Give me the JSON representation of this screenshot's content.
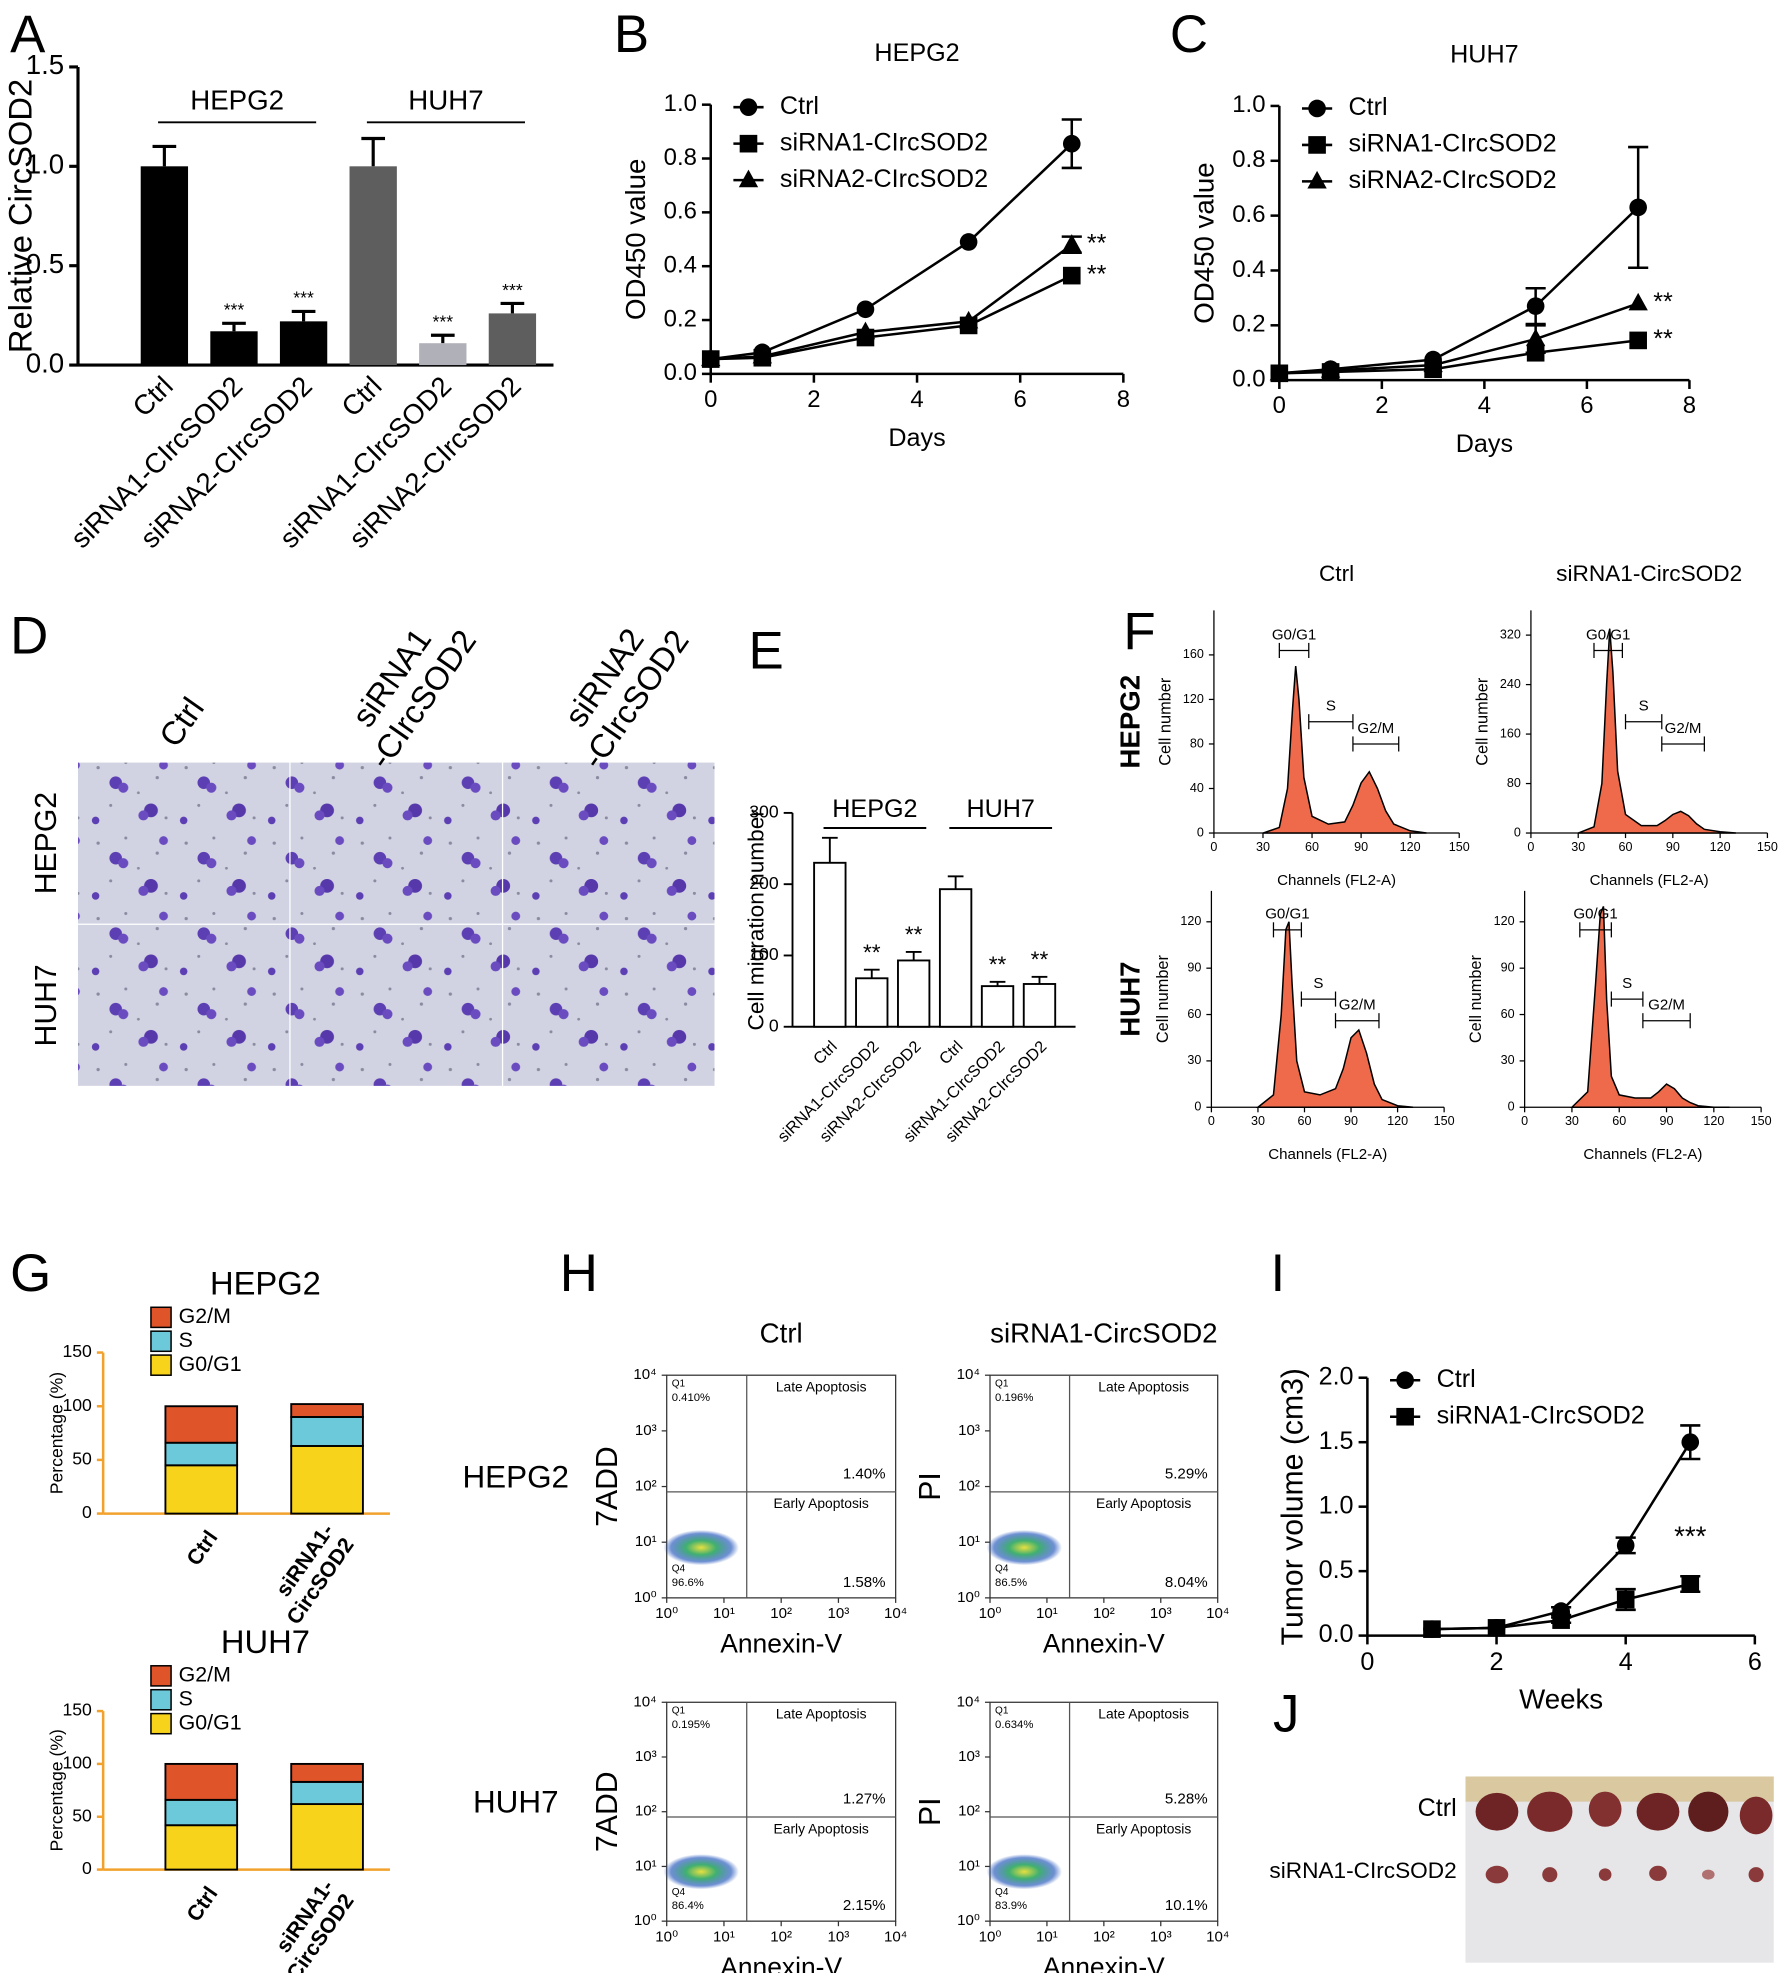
{
  "chart_data": [
    {
      "type": "bar",
      "panel": "A",
      "ylabel": "Relative CircSOD2",
      "categories": [
        "Ctrl",
        "siRNA1-CIrcSOD2",
        "siRNA2-CIrcSOD2",
        "Ctrl",
        "siRNA1-CIrcSOD2",
        "siRNA2-CIrcSOD2"
      ],
      "values": [
        1.0,
        0.17,
        0.22,
        1.0,
        0.11,
        0.26
      ],
      "errors": [
        0.1,
        0.04,
        0.05,
        0.14,
        0.04,
        0.05
      ],
      "colors": [
        "#000000",
        "#000000",
        "#000000",
        "#5e5e5e",
        "#b0b0b8",
        "#5e5e5e"
      ],
      "significance": [
        null,
        "***",
        "***",
        null,
        "***",
        "***"
      ],
      "groups": [
        "HEPG2",
        "HUH7"
      ],
      "ylim": [
        0,
        1.5
      ],
      "yticks": [
        {
          "value": 0,
          "label": "0.0"
        },
        0.5,
        {
          "value": 1,
          "label": "1.0"
        },
        1.5
      ]
    },
    {
      "type": "line",
      "panel": "B",
      "title": "HEPG2",
      "xlabel": "Days",
      "ylabel": "OD450 value",
      "legend": "upper left",
      "x": [
        0,
        1,
        3,
        5,
        7
      ],
      "series": [
        {
          "name": "Ctrl",
          "marker": "circle",
          "values": [
            0.055,
            0.08,
            0.24,
            0.49,
            0.855
          ],
          "errors": [
            0,
            0,
            0,
            0,
            0.09
          ]
        },
        {
          "name": "siRNA1-CIrcSOD2",
          "marker": "square",
          "values": [
            0.055,
            0.06,
            0.135,
            0.18,
            0.365
          ],
          "errors": [
            0,
            0,
            0,
            0,
            0
          ],
          "significance": "**"
        },
        {
          "name": "siRNA2-CIrcSOD2",
          "marker": "triangle",
          "values": [
            0.055,
            0.065,
            0.155,
            0.195,
            0.48
          ],
          "errors": [
            0,
            0,
            0,
            0,
            0.03
          ],
          "significance": "**"
        }
      ],
      "xlim": [
        0,
        8
      ],
      "xticks": [
        0,
        2,
        4,
        6,
        8
      ],
      "ylim": [
        0,
        1.0
      ],
      "yticks": [
        {
          "value": 0,
          "label": "0.0"
        },
        0.2,
        0.4,
        0.6,
        0.8,
        {
          "value": 1,
          "label": "1.0"
        }
      ]
    },
    {
      "type": "line",
      "panel": "C",
      "title": "HUH7",
      "xlabel": "Days",
      "ylabel": "OD450 value",
      "legend": "upper left",
      "x": [
        0,
        1,
        3,
        5,
        7
      ],
      "series": [
        {
          "name": "Ctrl",
          "marker": "circle",
          "values": [
            0.025,
            0.04,
            0.075,
            0.27,
            0.63
          ],
          "errors": [
            0,
            0,
            0,
            0.065,
            0.22
          ]
        },
        {
          "name": "siRNA1-CIrcSOD2",
          "marker": "square",
          "values": [
            0.025,
            0.03,
            0.04,
            0.1,
            0.145
          ],
          "errors": [
            0,
            0,
            0,
            0,
            0
          ],
          "significance": "**"
        },
        {
          "name": "siRNA2-CIrcSOD2",
          "marker": "triangle",
          "values": [
            0.025,
            0.035,
            0.055,
            0.15,
            0.28
          ],
          "errors": [
            0,
            0,
            0,
            0.05,
            0
          ],
          "significance": "**"
        }
      ],
      "xlim": [
        0,
        8
      ],
      "xticks": [
        0,
        2,
        4,
        6,
        8
      ],
      "ylim": [
        0,
        1.0
      ],
      "yticks": [
        {
          "value": 0,
          "label": "0.0"
        },
        0.2,
        0.4,
        0.6,
        0.8,
        {
          "value": 1,
          "label": "1.0"
        }
      ]
    },
    {
      "type": "image",
      "panel": "D",
      "column_labels": [
        "Ctrl",
        "siRNA1\n-CIrcSOD2",
        "siRNA2\n-CIrcSOD2"
      ],
      "row_labels": [
        "HEPG2",
        "HUH7"
      ]
    },
    {
      "type": "bar",
      "panel": "E",
      "ylabel": "Cell migration number",
      "categories": [
        "Ctrl",
        "siRNA1-CIrcSOD2",
        "siRNA2-CIrcSOD2",
        "Ctrl",
        "siRNA1-CIrcSOD2",
        "siRNA2-CIrcSOD2"
      ],
      "values": [
        230,
        68,
        93,
        193,
        57,
        60
      ],
      "errors": [
        35,
        12,
        12,
        18,
        6,
        10
      ],
      "colors": [
        "#ffffff",
        "#ffffff",
        "#ffffff",
        "#ffffff",
        "#ffffff",
        "#ffffff"
      ],
      "significance": [
        null,
        "**",
        "**",
        null,
        "**",
        "**"
      ],
      "groups": [
        "HEPG2",
        "HUH7"
      ],
      "ylim": [
        0,
        300
      ],
      "yticks": [
        0,
        100,
        200,
        300
      ]
    },
    {
      "type": "flow_histogram",
      "panel": "F",
      "column_titles": [
        "Ctrl",
        "siRNA1-CircSOD2"
      ],
      "row_labels": [
        "HEPG2",
        "HUH7"
      ],
      "xlabel": "Channels  (FL2-A)",
      "ylabel": "Cell number",
      "color": "#ef6a4a",
      "xlim": [
        0,
        150
      ],
      "xticks": [
        0,
        30,
        60,
        90,
        120,
        150
      ],
      "x": [
        30,
        40,
        45,
        48,
        50,
        52,
        55,
        60,
        70,
        80,
        85,
        90,
        95,
        100,
        105,
        110,
        120,
        130
      ],
      "subplots": [
        {
          "ylim": [
            0,
            200
          ],
          "yticks": [
            0,
            40,
            80,
            120,
            160
          ],
          "values": [
            0,
            5,
            40,
            110,
            150,
            120,
            50,
            15,
            8,
            10,
            25,
            45,
            55,
            40,
            20,
            8,
            2,
            0
          ],
          "gates": [
            {
              "label": "G0/G1",
              "range": [
                40,
                58
              ]
            },
            {
              "label": "S",
              "range": [
                58,
                85
              ]
            },
            {
              "label": "G2/M",
              "range": [
                85,
                113
              ]
            }
          ]
        },
        {
          "ylim": [
            0,
            360
          ],
          "yticks": [
            0,
            80,
            160,
            240,
            320
          ],
          "values": [
            0,
            10,
            80,
            240,
            330,
            260,
            100,
            30,
            12,
            12,
            20,
            30,
            35,
            28,
            15,
            6,
            2,
            0
          ],
          "gates": [
            {
              "label": "G0/G1",
              "range": [
                40,
                58
              ]
            },
            {
              "label": "S",
              "range": [
                60,
                83
              ]
            },
            {
              "label": "G2/M",
              "range": [
                83,
                110
              ]
            }
          ]
        },
        {
          "ylim": [
            0,
            140
          ],
          "yticks": [
            0,
            30,
            60,
            90,
            120
          ],
          "values": [
            0,
            8,
            60,
            115,
            120,
            80,
            30,
            10,
            8,
            12,
            25,
            45,
            50,
            35,
            15,
            5,
            1,
            0
          ],
          "gates": [
            {
              "label": "G0/G1",
              "range": [
                40,
                58
              ]
            },
            {
              "label": "S",
              "range": [
                58,
                80
              ]
            },
            {
              "label": "G2/M",
              "range": [
                80,
                108
              ]
            }
          ]
        },
        {
          "ylim": [
            0,
            140
          ],
          "yticks": [
            0,
            30,
            60,
            90,
            120
          ],
          "values": [
            0,
            10,
            80,
            125,
            130,
            70,
            20,
            8,
            6,
            6,
            10,
            15,
            12,
            6,
            3,
            1,
            0,
            0
          ],
          "gates": [
            {
              "label": "G0/G1",
              "range": [
                35,
                55
              ]
            },
            {
              "label": "S",
              "range": [
                55,
                75
              ]
            },
            {
              "label": "G2/M",
              "range": [
                75,
                105
              ]
            }
          ]
        }
      ]
    },
    {
      "type": "stacked_bar",
      "panel": "G",
      "ylabel": "Percentage (%)",
      "categories": [
        "Ctrl",
        "siRNA1-\nCircSOD2"
      ],
      "axis_color": "#f2a22c",
      "label_color": "#e4521f",
      "ylim": [
        0,
        150
      ],
      "yticks": [
        0,
        50,
        100,
        150
      ],
      "subplots": [
        {
          "title": "HEPG2",
          "series": [
            {
              "name": "G0/G1",
              "color": "#f7d31c",
              "label_color": "#d8261c",
              "values": [
                45,
                63
              ]
            },
            {
              "name": "S",
              "color": "#6cc9d9",
              "label_color": "#f2a22c",
              "values": [
                21,
                27
              ]
            },
            {
              "name": "G2/M",
              "color": "#e0542a",
              "label_color": "#e0542a",
              "values": [
                34,
                12
              ]
            }
          ]
        },
        {
          "title": "HUH7",
          "series": [
            {
              "name": "G0/G1",
              "color": "#f7d31c",
              "label_color": "#d8261c",
              "values": [
                42,
                62
              ]
            },
            {
              "name": "S",
              "color": "#6cc9d9",
              "label_color": "#f2a22c",
              "values": [
                24,
                21
              ]
            },
            {
              "name": "G2/M",
              "color": "#e0542a",
              "label_color": "#e0542a",
              "values": [
                34,
                17
              ]
            }
          ]
        }
      ]
    },
    {
      "type": "dotplot",
      "panel": "H",
      "column_titles": [
        "Ctrl",
        "siRNA1-CircSOD2"
      ],
      "row_labels": [
        "HEPG2",
        "HUH7"
      ],
      "xlabel": "Annexin-V",
      "ylabels": [
        "7ADD",
        "PI"
      ],
      "log": true,
      "quadrant_names": [
        "Q1",
        "Q4"
      ],
      "region_labels": [
        "Late Apoptosis",
        "Early Apoptosis"
      ],
      "gate_x": 25,
      "gate_y": 80,
      "xlim": [
        1,
        10000
      ],
      "xticks": [
        {
          "value": 1,
          "label": "10⁰"
        },
        {
          "value": 10,
          "label": "10¹"
        },
        {
          "value": 100,
          "label": "10²"
        },
        {
          "value": 1000,
          "label": "10³"
        },
        {
          "value": 10000,
          "label": "10⁴"
        }
      ],
      "ylim": [
        1,
        10000
      ],
      "yticks": [
        {
          "value": 1,
          "label": "10⁰"
        },
        {
          "value": 10,
          "label": "10¹"
        },
        {
          "value": 100,
          "label": "10²"
        },
        {
          "value": 1000,
          "label": "10³"
        },
        {
          "value": 10000,
          "label": "10⁴"
        }
      ],
      "subplots": [
        {
          "values": [
            0.41,
            1.4,
            1.58,
            96.6
          ],
          "value_labels": [
            "0.410%",
            "1.40%",
            "1.58%",
            "96.6%"
          ]
        },
        {
          "values": [
            0.196,
            5.29,
            8.04,
            86.5
          ],
          "value_labels": [
            "0.196%",
            "5.29%",
            "8.04%",
            "86.5%"
          ]
        },
        {
          "values": [
            0.195,
            1.27,
            2.15,
            86.4
          ],
          "value_labels": [
            "0.195%",
            "1.27%",
            "2.15%",
            "86.4%"
          ]
        },
        {
          "values": [
            0.634,
            5.28,
            10.1,
            83.9
          ],
          "value_labels": [
            "0.634%",
            "5.28%",
            "10.1%",
            "83.9%"
          ]
        }
      ]
    },
    {
      "type": "line",
      "panel": "I",
      "xlabel": "Weeks",
      "ylabel": "Tumor volume (cm3)",
      "legend": "upper left",
      "annotation": "***",
      "x": [
        1,
        2,
        3,
        4,
        5
      ],
      "series": [
        {
          "name": "Ctrl",
          "marker": "circle",
          "values": [
            0.05,
            0.06,
            0.19,
            0.7,
            1.5
          ],
          "errors": [
            0,
            0,
            0.03,
            0.06,
            0.13
          ]
        },
        {
          "name": "siRNA1-CIrcSOD2",
          "marker": "square",
          "values": [
            0.05,
            0.06,
            0.12,
            0.28,
            0.4
          ],
          "errors": [
            0,
            0,
            0.02,
            0.08,
            0.06
          ]
        }
      ],
      "xlim": [
        0,
        6
      ],
      "xticks": [
        0,
        2,
        4,
        6
      ],
      "ylim": [
        0,
        2.0
      ],
      "yticks": [
        {
          "value": 0,
          "label": "0.0"
        },
        0.5,
        {
          "value": 1,
          "label": "1.0"
        },
        1.5,
        {
          "value": 2,
          "label": "2.0"
        }
      ]
    },
    {
      "type": "image",
      "panel": "J",
      "row_labels": [
        "Ctrl",
        "siRNA1-CIrcSOD2"
      ]
    }
  ]
}
